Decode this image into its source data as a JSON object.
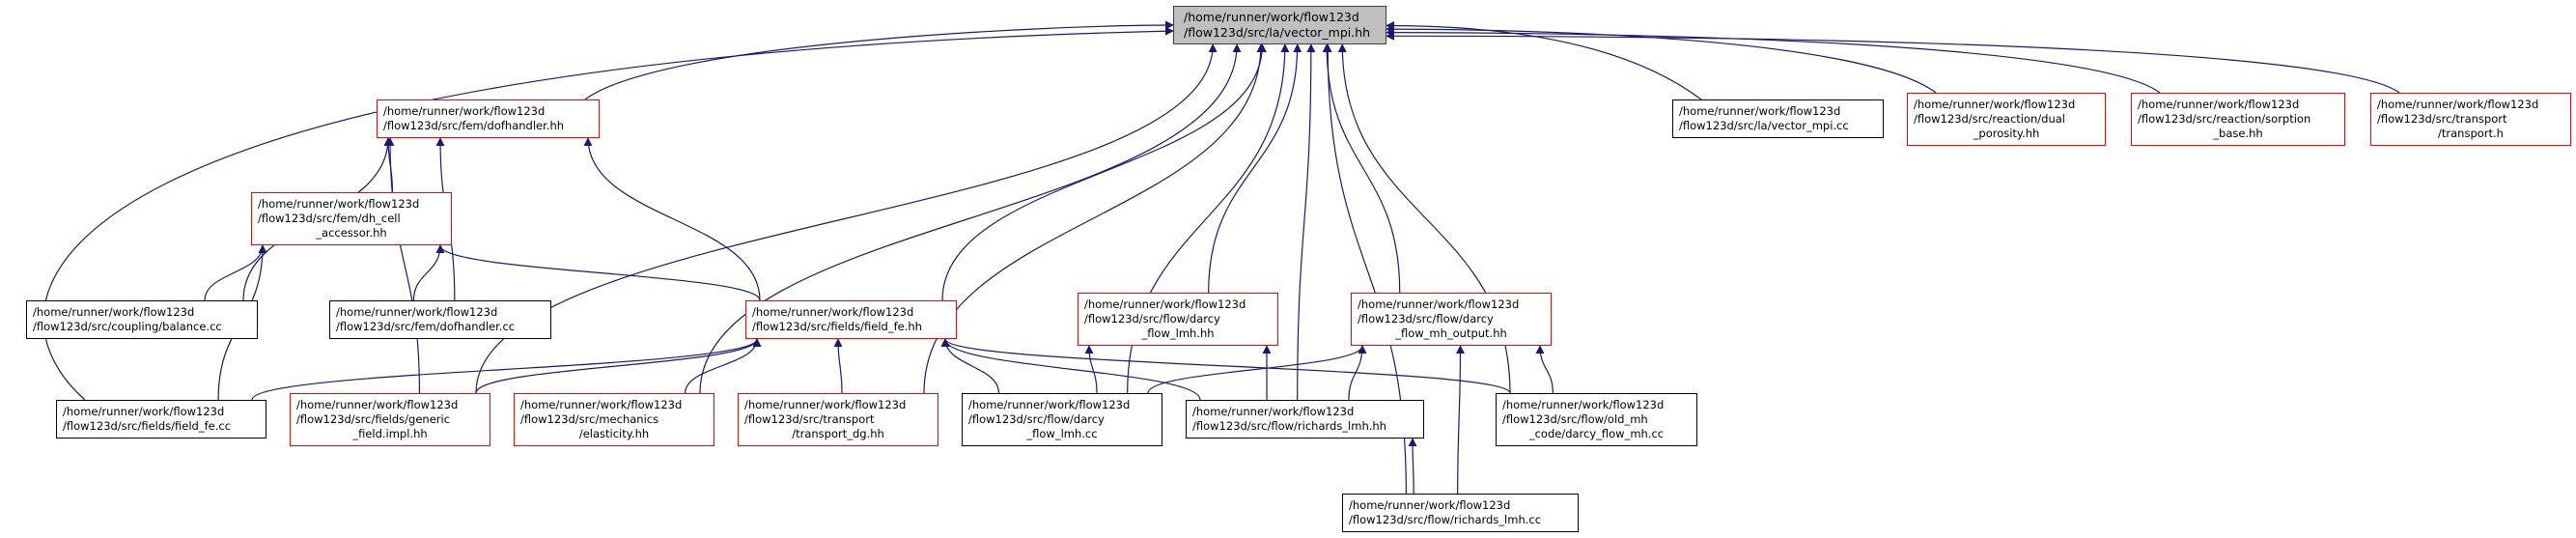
{
  "colors": {
    "edge": "#191970",
    "root_fill": "#bfbfbf",
    "incomplete_border": "#ff0000",
    "complete_border": "#000000"
  },
  "nodes": {
    "root": {
      "lines": [
        "/home/runner/work/flow123d",
        "/flow123d/src/la/vector_mpi.hh"
      ],
      "kind": "root"
    },
    "dofhandler_hh": {
      "lines": [
        "/home/runner/work/flow123d",
        "/flow123d/src/fem/dofhandler.hh"
      ],
      "kind": "red"
    },
    "dh_cell_accessor": {
      "lines": [
        "/home/runner/work/flow123d",
        "/flow123d/src/fem/dh_cell",
        "_accessor.hh"
      ],
      "kind": "red"
    },
    "balance_cc": {
      "lines": [
        "/home/runner/work/flow123d",
        "/flow123d/src/coupling/balance.cc"
      ],
      "kind": "black"
    },
    "dofhandler_cc": {
      "lines": [
        "/home/runner/work/flow123d",
        "/flow123d/src/fem/dofhandler.cc"
      ],
      "kind": "black"
    },
    "field_fe_hh": {
      "lines": [
        "/home/runner/work/flow123d",
        "/flow123d/src/fields/field_fe.hh"
      ],
      "kind": "red"
    },
    "field_fe_cc": {
      "lines": [
        "/home/runner/work/flow123d",
        "/flow123d/src/fields/field_fe.cc"
      ],
      "kind": "black"
    },
    "generic_field": {
      "lines": [
        "/home/runner/work/flow123d",
        "/flow123d/src/fields/generic",
        "_field.impl.hh"
      ],
      "kind": "red"
    },
    "elasticity": {
      "lines": [
        "/home/runner/work/flow123d",
        "/flow123d/src/mechanics",
        "/elasticity.hh"
      ],
      "kind": "red"
    },
    "transport_dg": {
      "lines": [
        "/home/runner/work/flow123d",
        "/flow123d/src/transport",
        "/transport_dg.hh"
      ],
      "kind": "red"
    },
    "darcy_flow_lmh_hh": {
      "lines": [
        "/home/runner/work/flow123d",
        "/flow123d/src/flow/darcy",
        "_flow_lmh.hh"
      ],
      "kind": "red"
    },
    "darcy_flow_mh_output": {
      "lines": [
        "/home/runner/work/flow123d",
        "/flow123d/src/flow/darcy",
        "_flow_mh_output.hh"
      ],
      "kind": "red"
    },
    "darcy_flow_lmh_cc": {
      "lines": [
        "/home/runner/work/flow123d",
        "/flow123d/src/flow/darcy",
        "_flow_lmh.cc"
      ],
      "kind": "black"
    },
    "richards_lmh_hh": {
      "lines": [
        "/home/runner/work/flow123d",
        "/flow123d/src/flow/richards_lmh.hh"
      ],
      "kind": "black"
    },
    "darcy_flow_mh_cc": {
      "lines": [
        "/home/runner/work/flow123d",
        "/flow123d/src/flow/old_mh",
        "_code/darcy_flow_mh.cc"
      ],
      "kind": "black"
    },
    "richards_lmh_cc": {
      "lines": [
        "/home/runner/work/flow123d",
        "/flow123d/src/flow/richards_lmh.cc"
      ],
      "kind": "black"
    },
    "vector_mpi_cc": {
      "lines": [
        "/home/runner/work/flow123d",
        "/flow123d/src/la/vector_mpi.cc"
      ],
      "kind": "black"
    },
    "dual_porosity": {
      "lines": [
        "/home/runner/work/flow123d",
        "/flow123d/src/reaction/dual",
        "_porosity.hh"
      ],
      "kind": "red"
    },
    "sorption_base": {
      "lines": [
        "/home/runner/work/flow123d",
        "/flow123d/src/reaction/sorption",
        "_base.hh"
      ],
      "kind": "red"
    },
    "transport_h": {
      "lines": [
        "/home/runner/work/flow123d",
        "/flow123d/src/transport",
        "/transport.h"
      ],
      "kind": "red"
    }
  },
  "edges": [
    [
      "dofhandler_hh",
      "root"
    ],
    [
      "dh_cell_accessor",
      "dofhandler_hh"
    ],
    [
      "balance_cc",
      "dofhandler_hh"
    ],
    [
      "balance_cc",
      "dh_cell_accessor"
    ],
    [
      "dofhandler_cc",
      "dofhandler_hh"
    ],
    [
      "dofhandler_cc",
      "dh_cell_accessor"
    ],
    [
      "field_fe_cc",
      "root"
    ],
    [
      "field_fe_cc",
      "dh_cell_accessor"
    ],
    [
      "field_fe_cc",
      "field_fe_hh"
    ],
    [
      "generic_field",
      "dofhandler_hh"
    ],
    [
      "generic_field",
      "root"
    ],
    [
      "generic_field",
      "field_fe_hh"
    ],
    [
      "elasticity",
      "root"
    ],
    [
      "elasticity",
      "field_fe_hh"
    ],
    [
      "transport_dg",
      "root"
    ],
    [
      "transport_dg",
      "field_fe_hh"
    ],
    [
      "field_fe_hh",
      "root"
    ],
    [
      "field_fe_hh",
      "dofhandler_hh"
    ],
    [
      "field_fe_hh",
      "dh_cell_accessor"
    ],
    [
      "darcy_flow_lmh_cc",
      "root"
    ],
    [
      "darcy_flow_lmh_cc",
      "field_fe_hh"
    ],
    [
      "darcy_flow_lmh_cc",
      "darcy_flow_lmh_hh"
    ],
    [
      "darcy_flow_lmh_cc",
      "darcy_flow_mh_output"
    ],
    [
      "richards_lmh_hh",
      "root"
    ],
    [
      "richards_lmh_hh",
      "field_fe_hh"
    ],
    [
      "richards_lmh_hh",
      "darcy_flow_lmh_hh"
    ],
    [
      "richards_lmh_hh",
      "darcy_flow_mh_output"
    ],
    [
      "darcy_flow_mh_cc",
      "root"
    ],
    [
      "darcy_flow_mh_cc",
      "field_fe_hh"
    ],
    [
      "darcy_flow_mh_cc",
      "darcy_flow_mh_output"
    ],
    [
      "richards_lmh_cc",
      "root"
    ],
    [
      "richards_lmh_cc",
      "richards_lmh_hh"
    ],
    [
      "richards_lmh_cc",
      "darcy_flow_mh_output"
    ],
    [
      "darcy_flow_lmh_hh",
      "root"
    ],
    [
      "darcy_flow_mh_output",
      "root"
    ],
    [
      "vector_mpi_cc",
      "root"
    ],
    [
      "dual_porosity",
      "root"
    ],
    [
      "sorption_base",
      "root"
    ],
    [
      "transport_h",
      "root"
    ]
  ]
}
